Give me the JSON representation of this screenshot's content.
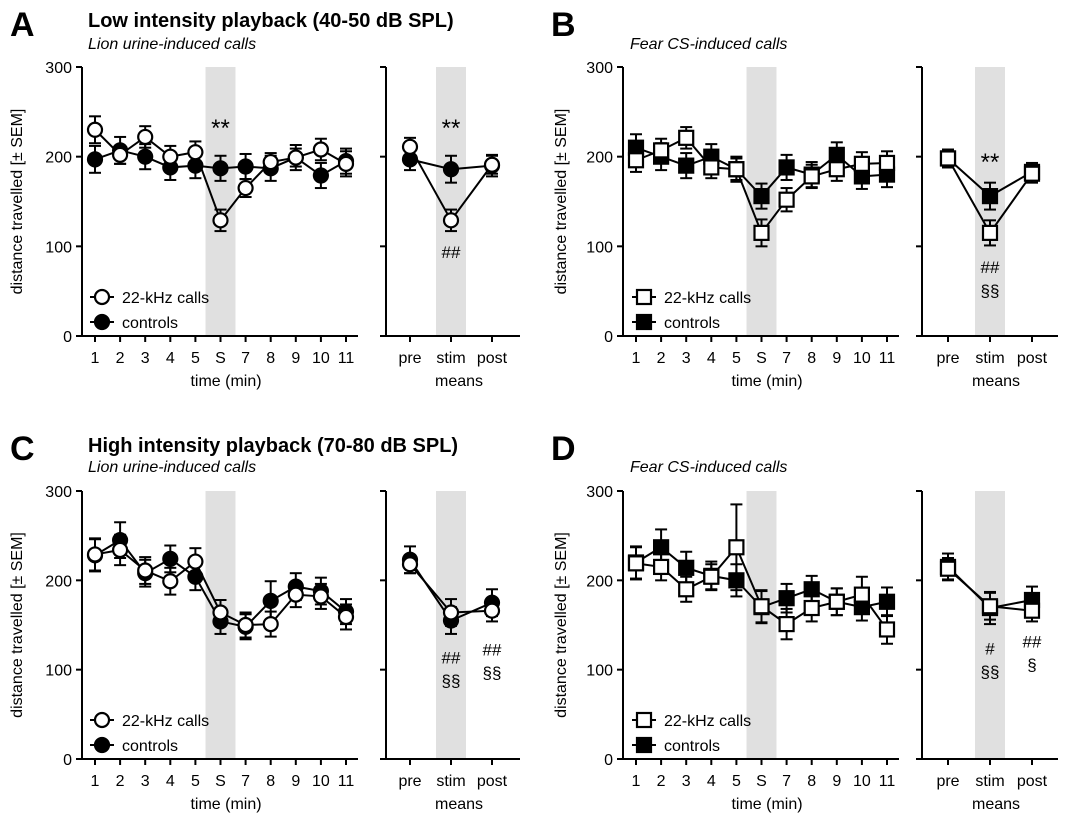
{
  "panels": {
    "A": {
      "letter": "A",
      "title": "Low intensity playback (40-50 dB SPL)",
      "subtitle": "Lion urine-induced calls"
    },
    "B": {
      "letter": "B",
      "title": "",
      "subtitle": "Fear CS-induced calls"
    },
    "C": {
      "letter": "C",
      "title": "High intensity playback (70-80 dB  SPL)",
      "subtitle": "Lion urine-induced calls"
    },
    "D": {
      "letter": "D",
      "title": "",
      "subtitle": "Fear CS-induced calls"
    }
  },
  "colors": {
    "stim_band": "#e0e0e0",
    "ink": "#000000",
    "open_fill": "#ffffff"
  },
  "chart_data": [
    {
      "panel": "A",
      "type": "line",
      "marker": "circle",
      "ylabel": "distance travelled [± SEM]",
      "ylim": [
        0,
        300
      ],
      "yticks": [
        0,
        100,
        200,
        300
      ],
      "time": {
        "xlabel": "time (min)",
        "categories": [
          "1",
          "2",
          "3",
          "4",
          "5",
          "S",
          "7",
          "8",
          "9",
          "10",
          "11"
        ],
        "stim_index": 5,
        "series": [
          {
            "name": "22-kHz calls",
            "open": true,
            "values": [
              230,
              202,
              222,
              200,
              205,
              129,
              165,
              194,
              199,
              208,
              192
            ],
            "errors": [
              15,
              10,
              12,
              12,
              12,
              12,
              10,
              10,
              10,
              12,
              14
            ]
          },
          {
            "name": "controls",
            "open": false,
            "values": [
              197,
              207,
              200,
              188,
              190,
              187,
              189,
              187,
              199,
              179,
              195
            ],
            "errors": [
              15,
              15,
              14,
              14,
              14,
              14,
              14,
              14,
              14,
              14,
              14
            ]
          }
        ],
        "annotations": [
          {
            "index": 5,
            "text": "**",
            "y": 232
          }
        ]
      },
      "means": {
        "xlabel": "means",
        "categories": [
          "pre",
          "stim",
          "post"
        ],
        "stim_index": 1,
        "series": [
          {
            "name": "22-kHz calls",
            "open": true,
            "values": [
              211,
              129,
              191
            ],
            "errors": [
              10,
              12,
              10
            ]
          },
          {
            "name": "controls",
            "open": false,
            "values": [
              197,
              186,
              190
            ],
            "errors": [
              12,
              15,
              12
            ]
          }
        ],
        "annotations": [
          {
            "index": 1,
            "text": "**",
            "y": 232
          },
          {
            "index": 1,
            "text": "##",
            "y": 96
          }
        ]
      }
    },
    {
      "panel": "B",
      "type": "line",
      "marker": "square",
      "ylabel": "distance travelled [± SEM]",
      "ylim": [
        0,
        300
      ],
      "yticks": [
        0,
        100,
        200,
        300
      ],
      "time": {
        "xlabel": "time (min)",
        "categories": [
          "1",
          "2",
          "3",
          "4",
          "5",
          "S",
          "7",
          "8",
          "9",
          "10",
          "11"
        ],
        "stim_index": 5,
        "series": [
          {
            "name": "22-kHz calls",
            "open": true,
            "values": [
              196,
              207,
              221,
              188,
              186,
              115,
              152,
              178,
              186,
              192,
              193
            ],
            "errors": [
              13,
              13,
              12,
              12,
              12,
              15,
              13,
              13,
              13,
              13,
              13
            ]
          },
          {
            "name": "controls",
            "open": false,
            "values": [
              210,
              200,
              190,
              200,
              186,
              156,
              188,
              180,
              202,
              178,
              180
            ],
            "errors": [
              15,
              15,
              14,
              14,
              14,
              14,
              14,
              14,
              14,
              14,
              14
            ]
          }
        ],
        "annotations": []
      },
      "means": {
        "xlabel": "means",
        "categories": [
          "pre",
          "stim",
          "post"
        ],
        "stim_index": 1,
        "series": [
          {
            "name": "22-kHz calls",
            "open": true,
            "values": [
              198,
              115,
              181
            ],
            "errors": [
              10,
              14,
              10
            ]
          },
          {
            "name": "controls",
            "open": false,
            "values": [
              198,
              156,
              183
            ],
            "errors": [
              10,
              15,
              10
            ]
          }
        ],
        "annotations": [
          {
            "index": 1,
            "text": "**",
            "y": 194
          },
          {
            "index": 1,
            "text": "##",
            "y": 79
          },
          {
            "index": 1,
            "text": "§§",
            "y": 53
          }
        ]
      }
    },
    {
      "panel": "C",
      "type": "line",
      "marker": "circle",
      "ylabel": "distance travelled [± SEM]",
      "ylim": [
        0,
        300
      ],
      "yticks": [
        0,
        100,
        200,
        300
      ],
      "time": {
        "xlabel": "time (min)",
        "categories": [
          "1",
          "2",
          "3",
          "4",
          "5",
          "S",
          "7",
          "8",
          "9",
          "10",
          "11"
        ],
        "stim_index": 5,
        "series": [
          {
            "name": "22-kHz calls",
            "open": true,
            "values": [
              229,
              234,
              211,
              199,
              221,
              164,
              150,
              151,
              184,
              182,
              159
            ],
            "errors": [
              18,
              17,
              15,
              15,
              15,
              14,
              14,
              14,
              14,
              14,
              14
            ]
          },
          {
            "name": "controls",
            "open": false,
            "values": [
              228,
              245,
              208,
              224,
              204,
              154,
              148,
              177,
              193,
              188,
              165
            ],
            "errors": [
              18,
              20,
              15,
              15,
              15,
              14,
              14,
              22,
              15,
              15,
              14
            ]
          }
        ],
        "annotations": []
      },
      "means": {
        "xlabel": "means",
        "categories": [
          "pre",
          "stim",
          "post"
        ],
        "stim_index": 1,
        "series": [
          {
            "name": "22-kHz calls",
            "open": true,
            "values": [
              218,
              164,
              166
            ],
            "errors": [
              10,
              15,
              12
            ]
          },
          {
            "name": "controls",
            "open": false,
            "values": [
              223,
              155,
              175
            ],
            "errors": [
              15,
              15,
              15
            ]
          }
        ],
        "annotations": [
          {
            "index": 1,
            "text": "##",
            "y": 116
          },
          {
            "index": 1,
            "text": "§§",
            "y": 90
          },
          {
            "index": 2,
            "text": "##",
            "y": 125
          },
          {
            "index": 2,
            "text": "§§",
            "y": 99
          }
        ]
      }
    },
    {
      "panel": "D",
      "type": "line",
      "marker": "square",
      "ylabel": "distance travelled [± SEM]",
      "ylim": [
        0,
        300
      ],
      "yticks": [
        0,
        100,
        200,
        300
      ],
      "time": {
        "xlabel": "time (min)",
        "categories": [
          "1",
          "2",
          "3",
          "4",
          "5",
          "S",
          "7",
          "8",
          "9",
          "10",
          "11"
        ],
        "stim_index": 5,
        "series": [
          {
            "name": "22-kHz calls",
            "open": true,
            "values": [
              219,
              215,
              190,
              204,
              237,
              171,
              151,
              169,
              176,
              184,
              145
            ],
            "errors": [
              18,
              15,
              14,
              14,
              48,
              18,
              17,
              15,
              15,
              20,
              16
            ]
          },
          {
            "name": "controls",
            "open": false,
            "values": [
              220,
              237,
              214,
              205,
              200,
              170,
              180,
              190,
              176,
              170,
              176
            ],
            "errors": [
              18,
              20,
              18,
              16,
              18,
              18,
              16,
              15,
              15,
              15,
              16
            ]
          }
        ],
        "annotations": []
      },
      "means": {
        "xlabel": "means",
        "categories": [
          "pre",
          "stim",
          "post"
        ],
        "stim_index": 1,
        "series": [
          {
            "name": "22-kHz calls",
            "open": true,
            "values": [
              213,
              171,
              166
            ],
            "errors": [
              12,
              15,
              12
            ]
          },
          {
            "name": "controls",
            "open": false,
            "values": [
              215,
              169,
              178
            ],
            "errors": [
              15,
              18,
              15
            ]
          }
        ],
        "annotations": [
          {
            "index": 1,
            "text": "#",
            "y": 126
          },
          {
            "index": 1,
            "text": "§§",
            "y": 100
          },
          {
            "index": 2,
            "text": "##",
            "y": 134
          },
          {
            "index": 2,
            "text": "§",
            "y": 108
          }
        ]
      }
    }
  ]
}
